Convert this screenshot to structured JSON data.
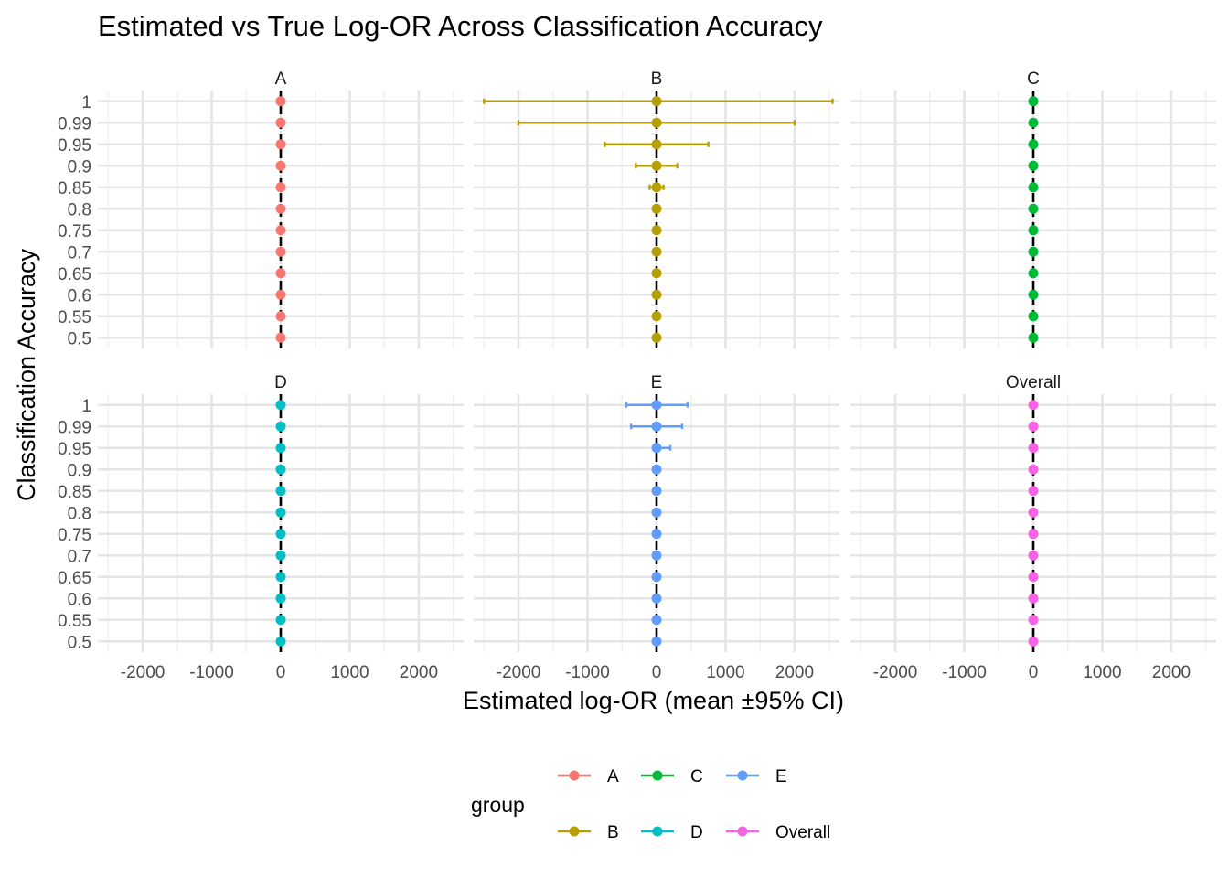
{
  "title": "Estimated vs True Log-OR Across Classification Accuracy",
  "xlabel": "Estimated log-OR (mean ±95% CI)",
  "ylabel": "Classification Accuracy",
  "legend": {
    "title": "group",
    "items": [
      {
        "label": "A",
        "color": "#F8766D"
      },
      {
        "label": "C",
        "color": "#00BA38"
      },
      {
        "label": "E",
        "color": "#619CFF"
      },
      {
        "label": "B",
        "color": "#B79F00"
      },
      {
        "label": "D",
        "color": "#00BFC4"
      },
      {
        "label": "Overall",
        "color": "#F564E3"
      }
    ]
  },
  "chart_data": {
    "type": "scatter",
    "facets": [
      "A",
      "B",
      "C",
      "D",
      "E",
      "Overall"
    ],
    "y_categories": [
      "0.5",
      "0.55",
      "0.6",
      "0.65",
      "0.7",
      "0.75",
      "0.8",
      "0.85",
      "0.9",
      "0.95",
      "0.99",
      "1"
    ],
    "x_ticks": [
      -2000,
      -1000,
      0,
      1000,
      2000
    ],
    "x_tick_labels": [
      "-2000",
      "-1000",
      "0",
      "1000",
      "2000"
    ],
    "xlim": [
      -2650,
      2650
    ],
    "true_log_or": 0,
    "grid": true,
    "legend_position": "bottom",
    "series": [
      {
        "name": "A",
        "color": "#F8766D",
        "facet": "A",
        "mean": [
          0,
          0,
          0,
          0,
          0,
          0,
          0,
          0,
          0,
          0,
          0,
          0
        ],
        "lower": [
          0,
          0,
          0,
          0,
          0,
          0,
          0,
          0,
          0,
          0,
          0,
          0
        ],
        "upper": [
          0,
          0,
          0,
          0,
          0,
          0,
          0,
          0,
          0,
          0,
          0,
          0
        ]
      },
      {
        "name": "B",
        "color": "#B79F00",
        "facet": "B",
        "mean": [
          0,
          0,
          0,
          0,
          0,
          0,
          0,
          0,
          0,
          0,
          0,
          0
        ],
        "lower": [
          0,
          0,
          0,
          0,
          0,
          0,
          0,
          -100,
          -300,
          -750,
          -2000,
          -2500
        ],
        "upper": [
          0,
          0,
          0,
          0,
          0,
          0,
          0,
          100,
          300,
          750,
          2000,
          2550
        ]
      },
      {
        "name": "C",
        "color": "#00BA38",
        "facet": "C",
        "mean": [
          0,
          0,
          0,
          0,
          0,
          0,
          0,
          0,
          0,
          0,
          0,
          0
        ],
        "lower": [
          0,
          0,
          0,
          0,
          0,
          0,
          0,
          0,
          0,
          0,
          0,
          0
        ],
        "upper": [
          0,
          0,
          0,
          0,
          0,
          0,
          0,
          0,
          0,
          0,
          0,
          0
        ]
      },
      {
        "name": "D",
        "color": "#00BFC4",
        "facet": "D",
        "mean": [
          0,
          0,
          0,
          0,
          0,
          0,
          0,
          0,
          0,
          0,
          0,
          0
        ],
        "lower": [
          0,
          0,
          0,
          0,
          0,
          0,
          0,
          0,
          0,
          0,
          0,
          0
        ],
        "upper": [
          0,
          0,
          0,
          0,
          0,
          0,
          0,
          0,
          0,
          0,
          0,
          0
        ]
      },
      {
        "name": "E",
        "color": "#619CFF",
        "facet": "E",
        "mean": [
          0,
          0,
          0,
          0,
          0,
          0,
          0,
          0,
          0,
          0,
          0,
          0
        ],
        "lower": [
          0,
          0,
          0,
          0,
          0,
          0,
          0,
          0,
          0,
          0,
          -370,
          -440
        ],
        "upper": [
          0,
          0,
          0,
          0,
          0,
          0,
          0,
          0,
          0,
          200,
          370,
          450
        ]
      },
      {
        "name": "Overall",
        "color": "#F564E3",
        "facet": "Overall",
        "mean": [
          0,
          0,
          0,
          0,
          0,
          0,
          0,
          0,
          0,
          0,
          0,
          0
        ],
        "lower": [
          0,
          0,
          0,
          0,
          0,
          0,
          0,
          0,
          0,
          0,
          0,
          0
        ],
        "upper": [
          0,
          0,
          0,
          0,
          0,
          0,
          0,
          0,
          0,
          0,
          0,
          0
        ]
      }
    ]
  }
}
